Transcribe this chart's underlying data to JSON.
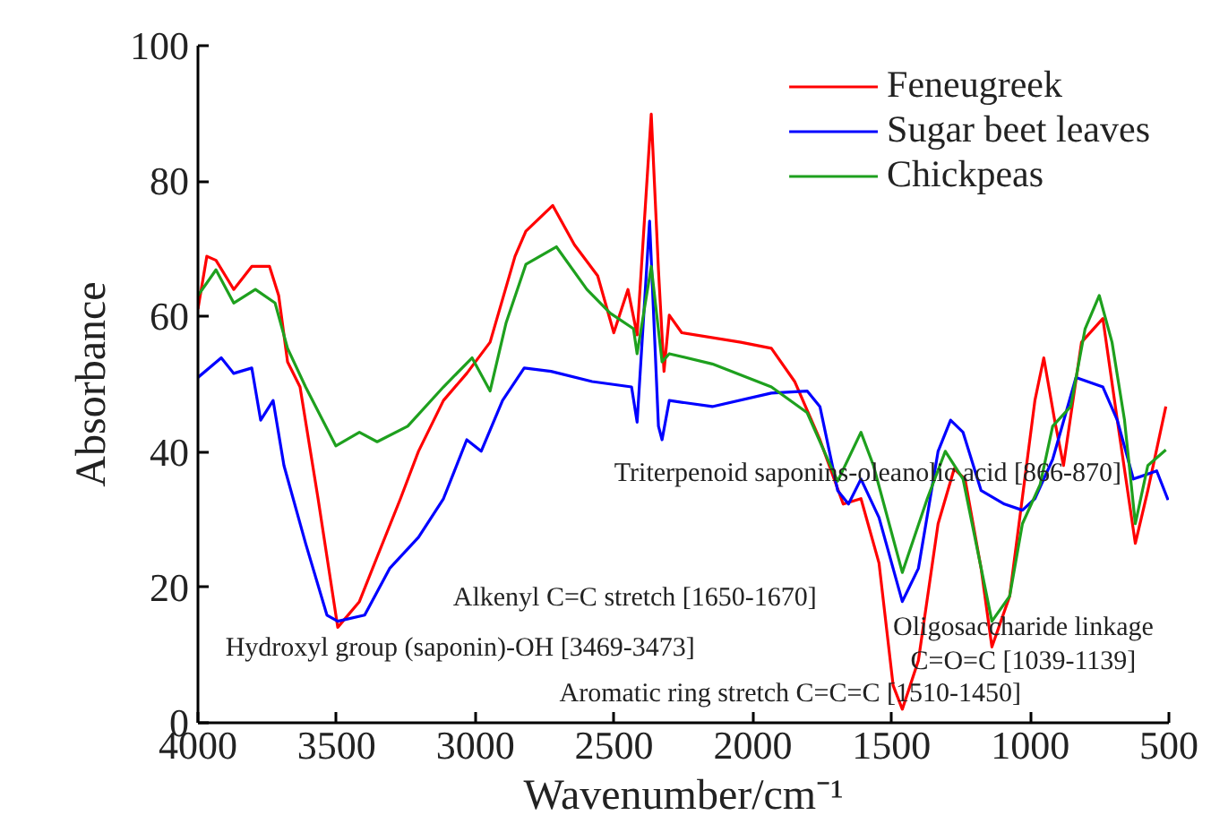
{
  "chart_data": {
    "type": "line",
    "xlabel": "Wavenumber/cm⁻¹",
    "ylabel": "Absorbance",
    "xlim": [
      4000,
      500
    ],
    "xticks": [
      4000,
      3500,
      3000,
      2500,
      2000,
      1500,
      1000,
      500
    ],
    "ylim": [
      0,
      100
    ],
    "yticks": [
      0,
      20,
      40,
      60,
      80,
      100
    ],
    "grid": false,
    "legend": "top right",
    "marker": "none",
    "line_style": "solid",
    "series": [
      {
        "name": "Feneugreek",
        "color": "#ff0000",
        "x": [
          4000,
          3968,
          3935,
          3871,
          3806,
          3742,
          3709,
          3677,
          3632,
          3567,
          3496,
          3418,
          3354,
          3270,
          3205,
          3115,
          3031,
          2947,
          2857,
          2818,
          2721,
          2643,
          2559,
          2501,
          2450,
          2417,
          2366,
          2340,
          2320,
          2301,
          2256,
          2043,
          1933,
          1849,
          1758,
          1674,
          1610,
          1545,
          1494,
          1461,
          1403,
          1332,
          1274,
          1235,
          1177,
          1138,
          1074,
          983,
          951,
          912,
          880,
          815,
          738,
          686,
          621,
          576,
          511
        ],
        "values": [
          61.1,
          68.9,
          68.3,
          64.0,
          67.4,
          67.4,
          63.1,
          53.3,
          49.6,
          33.1,
          14.1,
          17.9,
          24.5,
          33.1,
          40.1,
          47.6,
          51.6,
          56.2,
          68.9,
          72.6,
          76.4,
          70.6,
          66.0,
          57.6,
          64.0,
          57.3,
          89.9,
          66.9,
          51.9,
          60.2,
          57.6,
          56.2,
          55.3,
          50.4,
          41.8,
          32.3,
          33.1,
          23.6,
          5.5,
          2.0,
          9.2,
          29.4,
          37.5,
          36.0,
          22.8,
          11.2,
          18.7,
          47.6,
          53.9,
          44.7,
          38.0,
          56.2,
          59.7,
          44.7,
          26.5,
          34.3,
          46.7
        ]
      },
      {
        "name": "Sugar beet leaves",
        "color": "#0000ff",
        "x": [
          4000,
          3916,
          3871,
          3806,
          3774,
          3729,
          3690,
          3612,
          3535,
          3496,
          3399,
          3309,
          3205,
          3115,
          3031,
          2979,
          2902,
          2824,
          2727,
          2579,
          2437,
          2417,
          2372,
          2340,
          2327,
          2301,
          2146,
          1933,
          1804,
          1758,
          1694,
          1655,
          1610,
          1545,
          1461,
          1403,
          1332,
          1287,
          1242,
          1177,
          1093,
          1028,
          983,
          919,
          835,
          738,
          686,
          628,
          544,
          503
        ],
        "values": [
          51.0,
          53.9,
          51.6,
          52.4,
          44.7,
          47.6,
          38.0,
          26.5,
          15.9,
          15.0,
          15.9,
          22.8,
          27.4,
          33.1,
          41.8,
          40.1,
          47.6,
          52.4,
          51.9,
          50.4,
          49.6,
          44.4,
          74.1,
          43.8,
          41.8,
          47.6,
          46.7,
          48.7,
          49.0,
          46.7,
          34.3,
          32.3,
          36.0,
          30.3,
          17.9,
          22.8,
          40.1,
          44.7,
          42.9,
          34.3,
          32.3,
          31.4,
          33.1,
          38.9,
          51.0,
          49.6,
          44.7,
          36.0,
          37.2,
          32.9
        ]
      },
      {
        "name": "Chickpeas",
        "color": "#1ea01e",
        "x": [
          4000,
          3935,
          3871,
          3793,
          3722,
          3677,
          3612,
          3503,
          3418,
          3354,
          3244,
          3115,
          3012,
          2947,
          2889,
          2818,
          2708,
          2598,
          2514,
          2430,
          2417,
          2366,
          2327,
          2301,
          2146,
          1933,
          1804,
          1720,
          1694,
          1610,
          1565,
          1461,
          1371,
          1306,
          1242,
          1138,
          1074,
          1028,
          964,
          919,
          854,
          802,
          751,
          705,
          660,
          621,
          576,
          511
        ],
        "values": [
          63.1,
          66.9,
          62.0,
          64.0,
          62.0,
          55.3,
          49.6,
          40.9,
          42.9,
          41.5,
          43.8,
          49.6,
          53.9,
          49.0,
          59.1,
          67.7,
          70.3,
          64.0,
          60.5,
          58.2,
          54.5,
          67.4,
          53.3,
          54.5,
          53.0,
          49.6,
          45.8,
          38.0,
          35.7,
          42.9,
          38.0,
          22.2,
          33.1,
          40.1,
          36.0,
          15.0,
          18.7,
          29.4,
          35.2,
          43.8,
          46.7,
          58.2,
          63.1,
          56.2,
          44.7,
          29.4,
          38.0,
          40.3
        ]
      }
    ],
    "annotations": [
      "Triterpenoid saponins-oleanolic acid [866-870]",
      "Alkenyl C=C stretch [1650-1670]",
      "Hydroxyl group (saponin)-OH [3469-3473]",
      "Oligosaccharide linkage\nC=O=C [1039-1139]",
      "Aromatic ring stretch C=C=C [1510-1450]"
    ]
  }
}
